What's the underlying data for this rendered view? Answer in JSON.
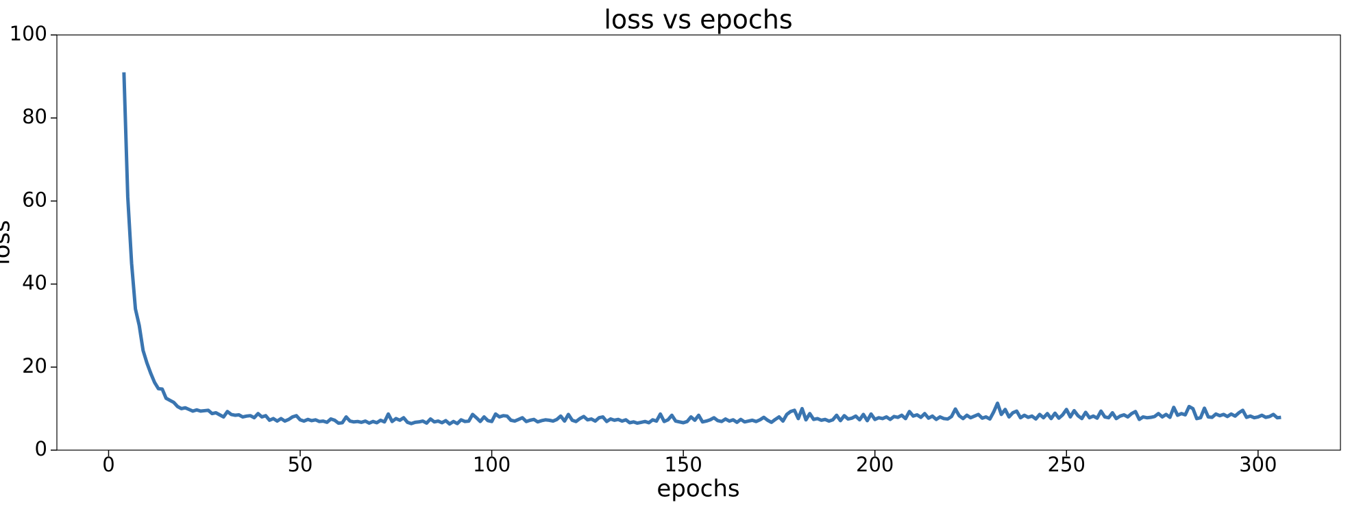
{
  "chart_data": {
    "type": "line",
    "title": "loss vs epochs",
    "x_label": "epochs",
    "y_label": "loss",
    "xlim": [
      -13.5,
      321.5
    ],
    "ylim": [
      0,
      100
    ],
    "xticks": [
      0,
      50,
      100,
      150,
      200,
      250,
      300
    ],
    "yticks": [
      0,
      20,
      40,
      60,
      80,
      100
    ],
    "x": [
      4,
      5,
      6,
      7,
      8,
      9,
      10,
      11,
      12,
      13,
      14,
      15,
      16,
      17,
      18,
      19,
      20,
      21,
      22,
      23,
      24,
      25,
      26,
      27,
      28,
      29,
      30,
      31,
      32,
      33,
      34,
      35,
      36,
      37,
      38,
      39,
      40,
      41,
      42,
      43,
      44,
      45,
      46,
      47,
      48,
      49,
      50,
      51,
      52,
      53,
      54,
      55,
      56,
      57,
      58,
      59,
      60,
      61,
      62,
      63,
      64,
      65,
      66,
      67,
      68,
      69,
      70,
      71,
      72,
      73,
      74,
      75,
      76,
      77,
      78,
      79,
      80,
      81,
      82,
      83,
      84,
      85,
      86,
      87,
      88,
      89,
      90,
      91,
      92,
      93,
      94,
      95,
      96,
      97,
      98,
      99,
      100,
      101,
      102,
      103,
      104,
      105,
      106,
      107,
      108,
      109,
      110,
      111,
      112,
      113,
      114,
      115,
      116,
      117,
      118,
      119,
      120,
      121,
      122,
      123,
      124,
      125,
      126,
      127,
      128,
      129,
      130,
      131,
      132,
      133,
      134,
      135,
      136,
      137,
      138,
      139,
      140,
      141,
      142,
      143,
      144,
      145,
      146,
      147,
      148,
      149,
      150,
      151,
      152,
      153,
      154,
      155,
      156,
      157,
      158,
      159,
      160,
      161,
      162,
      163,
      164,
      165,
      166,
      167,
      168,
      169,
      170,
      171,
      172,
      173,
      174,
      175,
      176,
      177,
      178,
      179,
      180,
      181,
      182,
      183,
      184,
      185,
      186,
      187,
      188,
      189,
      190,
      191,
      192,
      193,
      194,
      195,
      196,
      197,
      198,
      199,
      200,
      201,
      202,
      203,
      204,
      205,
      206,
      207,
      208,
      209,
      210,
      211,
      212,
      213,
      214,
      215,
      216,
      217,
      218,
      219,
      220,
      221,
      222,
      223,
      224,
      225,
      226,
      227,
      228,
      229,
      230,
      231,
      232,
      233,
      234,
      235,
      236,
      237,
      238,
      239,
      240,
      241,
      242,
      243,
      244,
      245,
      246,
      247,
      248,
      249,
      250,
      251,
      252,
      253,
      254,
      255,
      256,
      257,
      258,
      259,
      260,
      261,
      262,
      263,
      264,
      265,
      266,
      267,
      268,
      269,
      270,
      271,
      272,
      273,
      274,
      275,
      276,
      277,
      278,
      279,
      280,
      281,
      282,
      283,
      284,
      285,
      286,
      287,
      288,
      289,
      290,
      291,
      292,
      293,
      294,
      295,
      296,
      297,
      298,
      299,
      300,
      301,
      302,
      303,
      304,
      305,
      306
    ],
    "series": [
      {
        "name": "loss",
        "color": "#3a75b0",
        "values": [
          91,
          61,
          45,
          34,
          30,
          24,
          21,
          18.5,
          16.3,
          14.8,
          14.7,
          12.5,
          12,
          11.5,
          10.5,
          10,
          10.2,
          9.8,
          9.4,
          9.7,
          9.4,
          9.5,
          9.6,
          8.8,
          9,
          8.5,
          8,
          9.3,
          8.6,
          8.4,
          8.5,
          8,
          8.2,
          8.3,
          7.8,
          8.8,
          8,
          8.3,
          7.2,
          7.6,
          7.0,
          7.6,
          7.0,
          7.4,
          8.0,
          8.3,
          7.3,
          7.0,
          7.4,
          7.1,
          7.3,
          6.9,
          7.0,
          6.7,
          7.5,
          7.2,
          6.5,
          6.6,
          8.0,
          7.0,
          6.8,
          6.9,
          6.7,
          7.0,
          6.5,
          6.9,
          6.6,
          7.2,
          6.8,
          8.7,
          6.9,
          7.6,
          7.2,
          7.8,
          6.7,
          6.4,
          6.7,
          6.8,
          7.0,
          6.5,
          7.5,
          6.8,
          7.0,
          6.6,
          7.1,
          6.3,
          6.9,
          6.4,
          7.3,
          6.9,
          7.0,
          8.6,
          7.8,
          6.9,
          8.0,
          7.1,
          6.9,
          8.7,
          8.0,
          8.3,
          8.2,
          7.2,
          7.0,
          7.4,
          7.8,
          6.9,
          7.2,
          7.4,
          6.8,
          7.1,
          7.3,
          7.2,
          7.0,
          7.4,
          8.2,
          7.0,
          8.6,
          7.2,
          6.9,
          7.6,
          8.1,
          7.3,
          7.5,
          7.0,
          7.8,
          8.0,
          6.9,
          7.5,
          7.2,
          7.4,
          7.0,
          7.3,
          6.6,
          6.8,
          6.5,
          6.7,
          6.9,
          6.6,
          7.3,
          7.0,
          8.7,
          6.9,
          7.3,
          8.4,
          7.0,
          6.8,
          6.6,
          6.9,
          8.0,
          7.2,
          8.4,
          6.8,
          7.0,
          7.3,
          7.8,
          7.1,
          6.9,
          7.5,
          7.0,
          7.3,
          6.7,
          7.4,
          6.8,
          7.0,
          7.2,
          6.9,
          7.3,
          7.9,
          7.2,
          6.7,
          7.4,
          8.0,
          7.0,
          8.6,
          9.3,
          9.6,
          7.6,
          10.0,
          7.3,
          8.8,
          7.4,
          7.6,
          7.2,
          7.4,
          7.0,
          7.3,
          8.4,
          7.1,
          8.3,
          7.5,
          7.7,
          8.2,
          7.3,
          8.6,
          7.1,
          8.7,
          7.4,
          7.8,
          7.6,
          8.0,
          7.4,
          8.1,
          7.9,
          8.4,
          7.6,
          9.3,
          8.2,
          8.5,
          7.9,
          8.8,
          7.7,
          8.2,
          7.4,
          8.0,
          7.6,
          7.5,
          8.1,
          9.9,
          8.3,
          7.6,
          8.4,
          7.8,
          8.2,
          8.6,
          7.7,
          8.0,
          7.5,
          9.2,
          11.3,
          8.6,
          9.8,
          8.0,
          9.0,
          9.4,
          7.8,
          8.4,
          7.9,
          8.2,
          7.5,
          8.6,
          7.8,
          8.8,
          7.6,
          8.9,
          7.7,
          8.5,
          9.8,
          8.0,
          9.5,
          8.3,
          7.6,
          9.1,
          7.8,
          8.2,
          7.7,
          9.4,
          8.0,
          7.8,
          9.0,
          7.6,
          8.2,
          8.5,
          8.0,
          8.8,
          9.3,
          7.4,
          8.0,
          7.8,
          7.9,
          8.1,
          8.8,
          8.0,
          8.6,
          7.9,
          10.3,
          8.4,
          8.8,
          8.5,
          10.5,
          10.0,
          7.6,
          7.8,
          10.1,
          8.0,
          7.9,
          8.7,
          8.3,
          8.6,
          8.1,
          8.7,
          8.2,
          9.0,
          9.6,
          7.9,
          8.2,
          7.8,
          8.0,
          8.4,
          7.9,
          8.1,
          8.6,
          7.8,
          7.9
        ]
      }
    ]
  }
}
